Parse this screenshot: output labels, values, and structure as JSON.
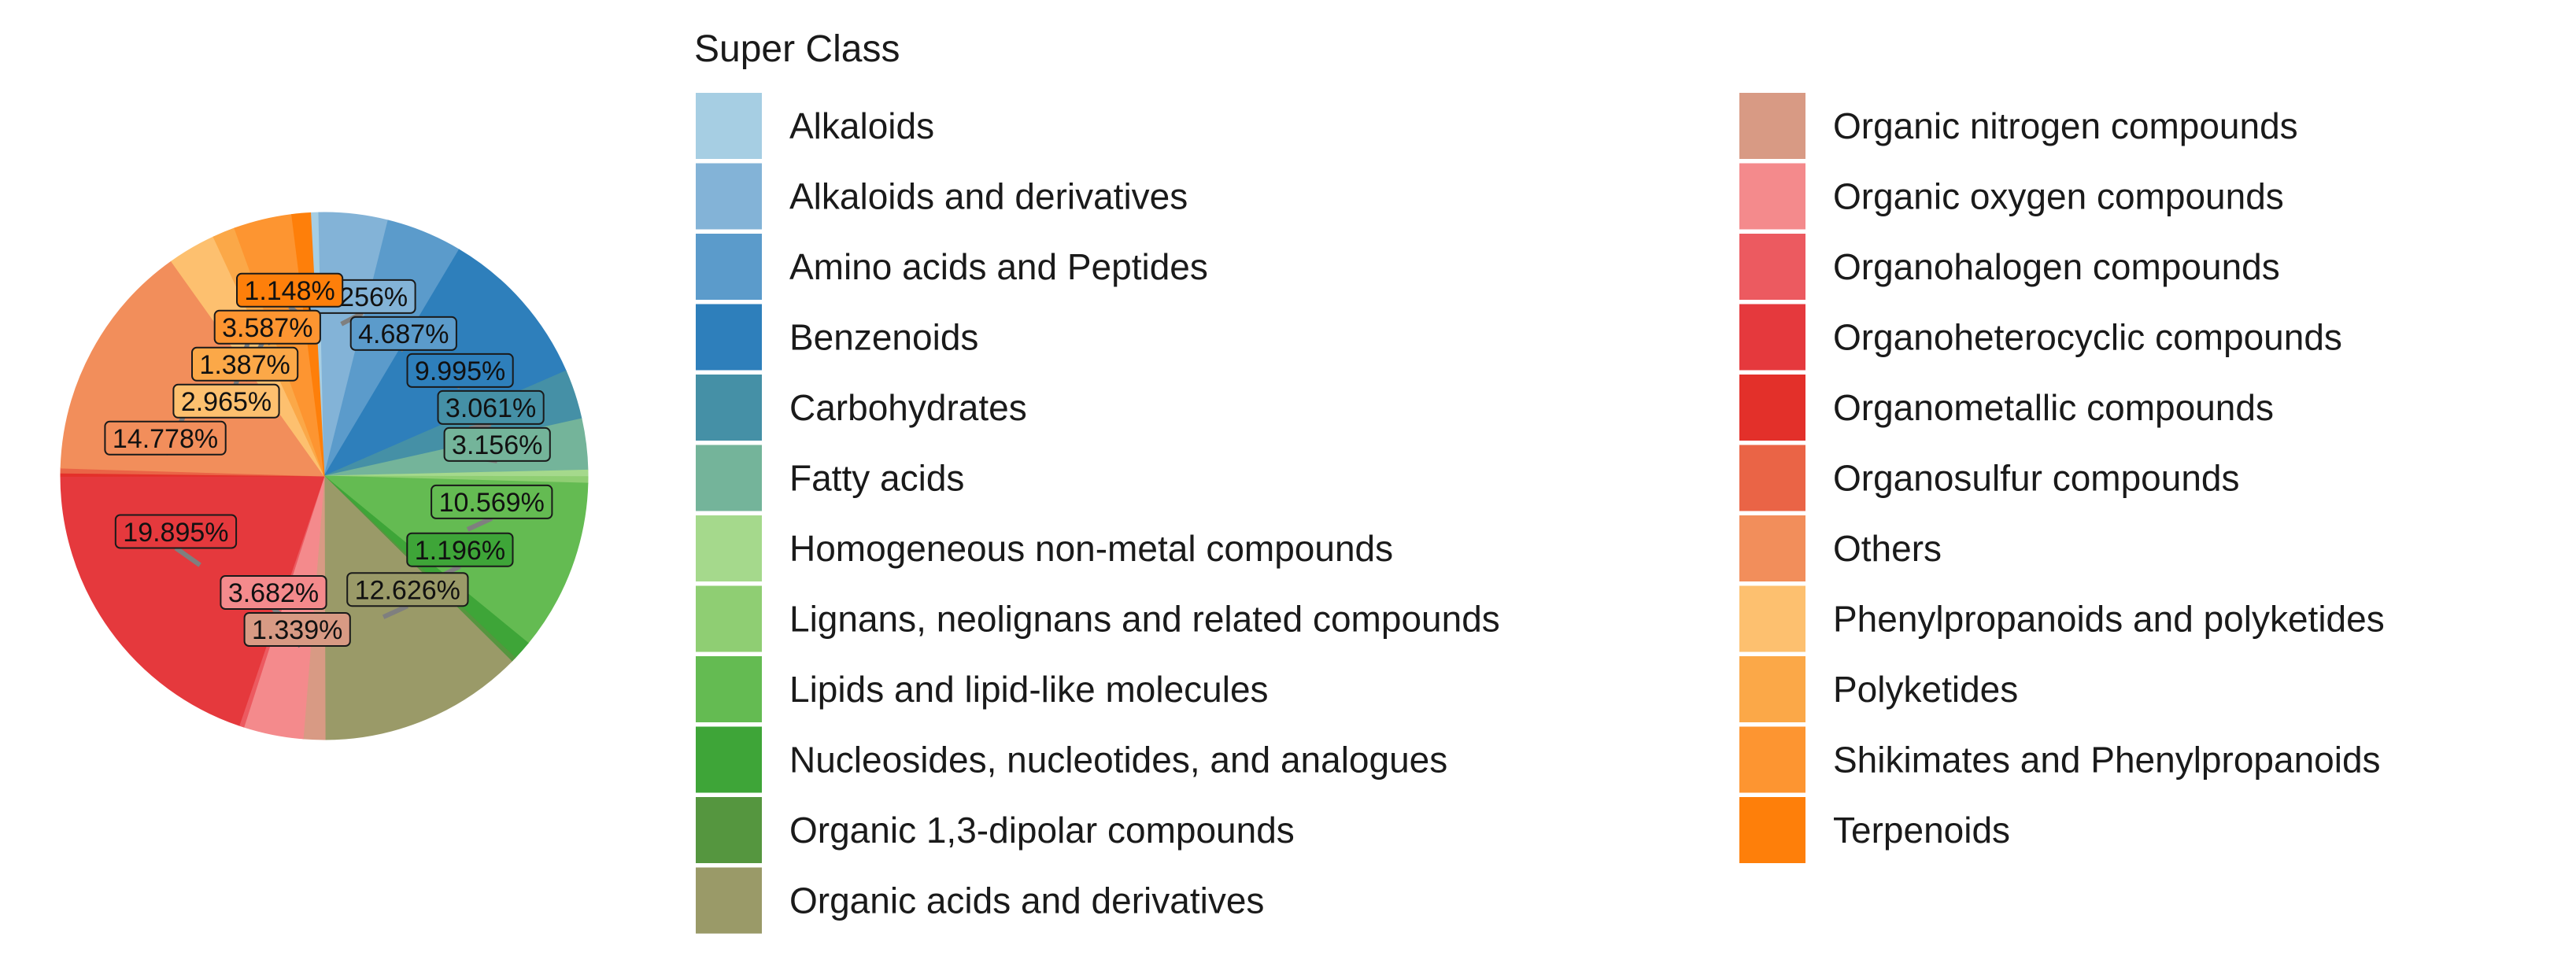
{
  "chart_data": {
    "type": "pie",
    "legend": {
      "title": "Super Class",
      "position": "right"
    },
    "slices": [
      {
        "name": "Alkaloids",
        "color": "#a6cee3",
        "value": 0.5,
        "label": ""
      },
      {
        "name": "Alkaloids and derivatives",
        "color": "#83b3d7",
        "value": 4.256,
        "label": "4.256%"
      },
      {
        "name": "Amino acids and Peptides",
        "color": "#5b9bcb",
        "value": 4.687,
        "label": "4.687%"
      },
      {
        "name": "Benzenoids",
        "color": "#2e7fbb",
        "value": 9.995,
        "label": "9.995%"
      },
      {
        "name": "Carbohydrates",
        "color": "#4590a6",
        "value": 3.061,
        "label": "3.061%"
      },
      {
        "name": "Fatty acids",
        "color": "#74b49a",
        "value": 3.156,
        "label": "3.156%"
      },
      {
        "name": "Homogeneous non-metal compounds",
        "color": "#a5d98c",
        "value": 0.4,
        "label": ""
      },
      {
        "name": "Lignans, neolignans and related compounds",
        "color": "#8fce73",
        "value": 0.4,
        "label": ""
      },
      {
        "name": "Lipids and lipid-like molecules",
        "color": "#64bb52",
        "value": 10.569,
        "label": "10.569%"
      },
      {
        "name": "Nucleosides, nucleotides, and analogues",
        "color": "#3ea538",
        "value": 1.196,
        "label": "1.196%"
      },
      {
        "name": "Organic 1,3-dipolar compounds",
        "color": "#55963f",
        "value": 0.3,
        "label": ""
      },
      {
        "name": "Organic acids and derivatives",
        "color": "#9a9a68",
        "value": 12.626,
        "label": "12.626%"
      },
      {
        "name": "Organic nitrogen compounds",
        "color": "#d89a84",
        "value": 1.339,
        "label": "1.339%"
      },
      {
        "name": "Organic oxygen compounds",
        "color": "#f48a8c",
        "value": 3.682,
        "label": "3.682%"
      },
      {
        "name": "Organohalogen compounds",
        "color": "#ec5a60",
        "value": 0.3,
        "label": ""
      },
      {
        "name": "Organoheterocyclic compounds",
        "color": "#e5393d",
        "value": 19.895,
        "label": "19.895%"
      },
      {
        "name": "Organometallic compounds",
        "color": "#e3302a",
        "value": 0.2,
        "label": ""
      },
      {
        "name": "Organosulfur compounds",
        "color": "#ea6446",
        "value": 0.3,
        "label": ""
      },
      {
        "name": "Others",
        "color": "#f28e5b",
        "value": 14.778,
        "label": "14.778%"
      },
      {
        "name": "Phenylpropanoids and polyketides",
        "color": "#fdc06f",
        "value": 2.965,
        "label": "2.965%"
      },
      {
        "name": "Polyketides",
        "color": "#fba848",
        "value": 1.387,
        "label": "1.387%"
      },
      {
        "name": "Shikimates and Phenylpropanoids",
        "color": "#fd9531",
        "value": 3.587,
        "label": "3.587%"
      },
      {
        "name": "Terpenoids",
        "color": "#fe7f0a",
        "value": 1.148,
        "label": "1.148%"
      }
    ]
  }
}
